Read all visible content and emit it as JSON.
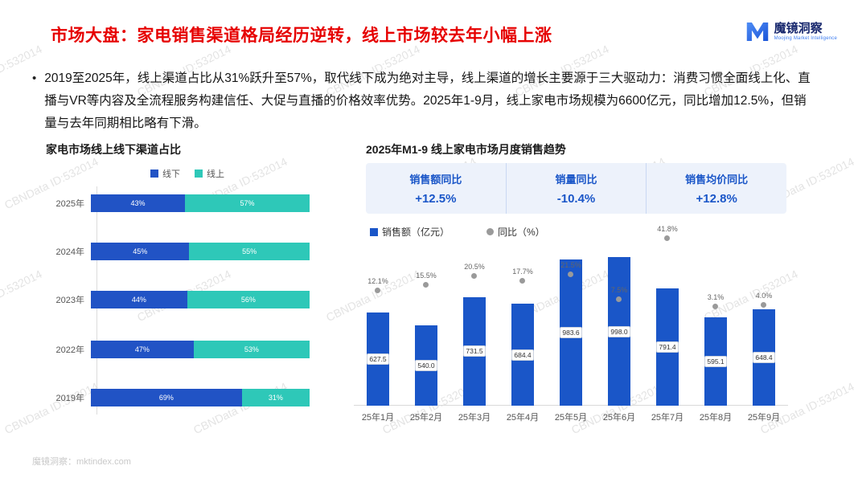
{
  "header": {
    "title": "市场大盘：家电销售渠道格局经历逆转，线上市场较去年小幅上涨",
    "logo": {
      "name": "魔镜洞察",
      "subtitle": "Moojing Market Intelligence"
    }
  },
  "summary": {
    "bullet": "•",
    "text": "2019至2025年，线上渠道占比从31%跃升至57%，取代线下成为绝对主导，线上渠道的增长主要源于三大驱动力：消费习惯全面线上化、直播与VR等内容及全流程服务构建信任、大促与直播的价格效率优势。2025年1-9月，线上家电市场规模为6600亿元，同比增加12.5%，但销量与去年同期相比略有下滑。"
  },
  "watermark": {
    "text": "CBNData ID:532014"
  },
  "footer": {
    "text": "魔镜洞察：mktindex.com"
  },
  "colors": {
    "title_red": "#e60000",
    "offline_blue": "#2153c5",
    "online_teal": "#2ec8b8",
    "stat_blue": "#1a56c8",
    "yoy_gray": "#9a9a9a"
  },
  "chart_data": [
    {
      "type": "bar",
      "orientation": "horizontal-stacked",
      "title": "家电市场线上线下渠道占比",
      "categories": [
        "2025年",
        "2024年",
        "2023年",
        "2022年",
        "2019年"
      ],
      "series": [
        {
          "name": "线下",
          "color": "#2153c5",
          "values": [
            43,
            45,
            44,
            47,
            69
          ]
        },
        {
          "name": "线上",
          "color": "#2ec8b8",
          "values": [
            57,
            55,
            56,
            53,
            31
          ]
        }
      ],
      "unit": "%",
      "legend_position": "top"
    },
    {
      "type": "bar",
      "subtype": "bar-with-scatter-overlay",
      "title": "2025年M1-9 线上家电市场月度销售趋势",
      "categories": [
        "25年1月",
        "25年2月",
        "25年3月",
        "25年4月",
        "25年5月",
        "25年6月",
        "25年7月",
        "25年8月",
        "25年9月"
      ],
      "series": [
        {
          "name": "销售额（亿元）",
          "type": "bar",
          "color": "#1a56c8",
          "values": [
            627.5,
            540.0,
            731.5,
            684.4,
            983.6,
            998.0,
            791.4,
            595.1,
            648.4
          ]
        },
        {
          "name": "同比（%）",
          "type": "scatter",
          "color": "#9a9a9a",
          "values": [
            12.1,
            15.5,
            20.5,
            17.7,
            21.5,
            7.5,
            41.8,
            3.1,
            4.0
          ]
        }
      ],
      "stats": [
        {
          "label": "销售额同比",
          "value": "+12.5%"
        },
        {
          "label": "销量同比",
          "value": "-10.4%"
        },
        {
          "label": "销售均价同比",
          "value": "+12.8%"
        }
      ],
      "legend_position": "top"
    }
  ]
}
